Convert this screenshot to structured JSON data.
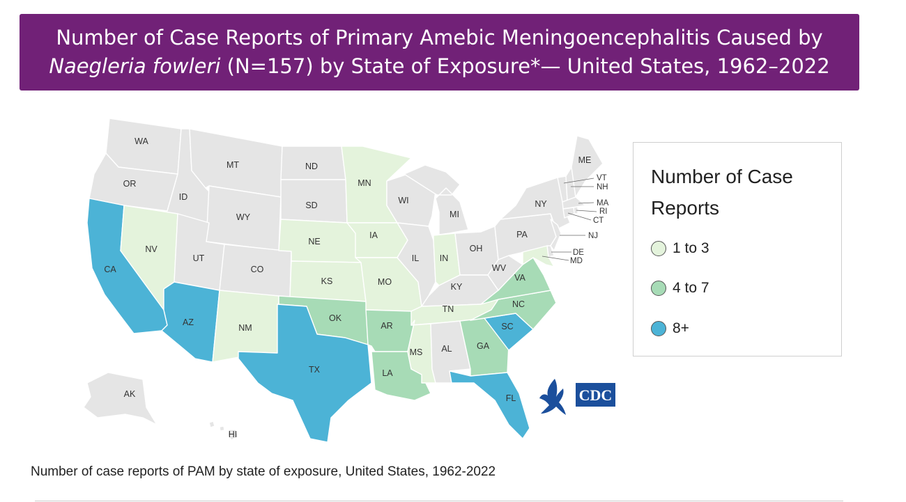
{
  "title": {
    "line1": "Number of Case Reports of Primary Amebic Meningoencephalitis Caused by",
    "line2_italic": "Naegleria fowleri",
    "line2_rest": " (N=157) by State of Exposure*— United States, 1962–2022"
  },
  "colors": {
    "banner": "#712177",
    "none": "#e5e5e5",
    "c1to3": "#e4f3dc",
    "c4to7": "#a7dbb6",
    "c8plus": "#4cb3d6"
  },
  "legend": {
    "title": "Number of Case Reports",
    "items": [
      {
        "label": "1 to 3",
        "color": "#e4f3dc"
      },
      {
        "label": "4 to 7",
        "color": "#a7dbb6"
      },
      {
        "label": "8+",
        "color": "#4cb3d6"
      }
    ]
  },
  "states": {
    "WA": "none",
    "OR": "none",
    "CA": "8+",
    "ID": "none",
    "NV": "1 to 3",
    "MT": "none",
    "WY": "none",
    "UT": "none",
    "AZ": "8+",
    "CO": "none",
    "NM": "1 to 3",
    "ND": "none",
    "SD": "none",
    "NE": "1 to 3",
    "KS": "1 to 3",
    "OK": "4 to 7",
    "TX": "8+",
    "MN": "1 to 3",
    "IA": "1 to 3",
    "MO": "1 to 3",
    "AR": "4 to 7",
    "LA": "4 to 7",
    "WI": "none",
    "IL": "none",
    "MI": "none",
    "IN": "1 to 3",
    "OH": "none",
    "KY": "none",
    "TN": "1 to 3",
    "MS": "1 to 3",
    "AL": "none",
    "GA": "4 to 7",
    "FL": "8+",
    "SC": "8+",
    "NC": "4 to 7",
    "VA": "4 to 7",
    "WV": "none",
    "PA": "none",
    "NY": "none",
    "NJ": "none",
    "DE": "none",
    "MD": "1 to 3",
    "VT": "none",
    "NH": "none",
    "ME": "none",
    "MA": "none",
    "RI": "none",
    "CT": "none",
    "AK": "none",
    "HI": "none"
  },
  "logo_text": "CDC",
  "caption": "Number of case reports of PAM by state of exposure, United States, 1962-2022"
}
